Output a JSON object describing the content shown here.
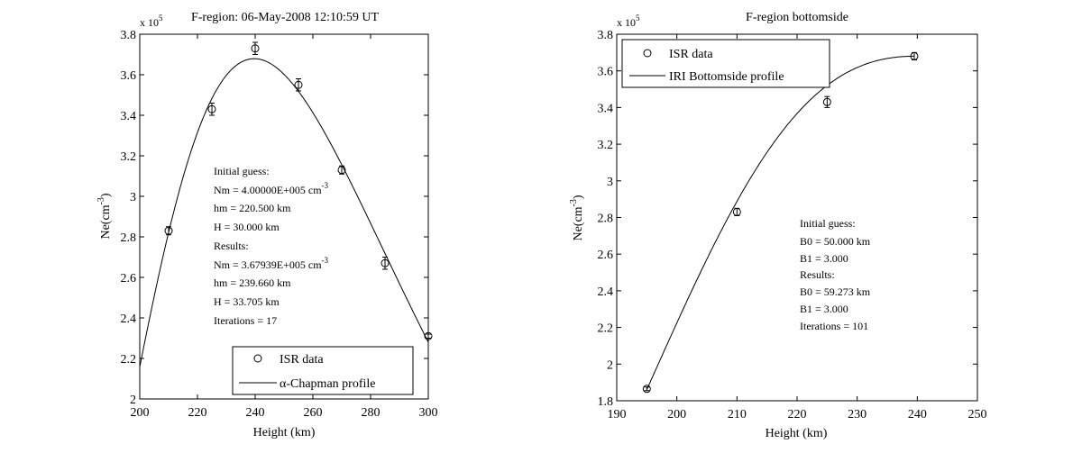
{
  "chart_data": [
    {
      "type": "scatter",
      "title": "F-region: 06-May-2008 12:10:59 UT",
      "xlabel": "Height (km)",
      "ylabel": "Ne(cm^-3)",
      "ylabel_main": "Ne(cm",
      "ylabel_exp": "-3",
      "ylabel_close": ")",
      "y_multiplier": "x 10",
      "y_multiplier_exp": "5",
      "xlim": [
        200,
        300
      ],
      "ylim": [
        2.0,
        3.8
      ],
      "x_ticks": [
        "200",
        "220",
        "240",
        "260",
        "280",
        "300"
      ],
      "y_ticks": [
        "2",
        "2.2",
        "2.4",
        "2.6",
        "2.8",
        "3",
        "3.2",
        "3.4",
        "3.6",
        "3.8"
      ],
      "grid": false,
      "legend_position": "bottom-center",
      "series": [
        {
          "name": "ISR data",
          "kind": "points-with-errorbars",
          "marker": "circle",
          "x": [
            210,
            225,
            240,
            255,
            270,
            285,
            300
          ],
          "y": [
            2.83,
            3.43,
            3.73,
            3.55,
            3.13,
            2.67,
            2.31
          ],
          "err": [
            0.02,
            0.03,
            0.03,
            0.03,
            0.02,
            0.03,
            0.01
          ]
        },
        {
          "name": "α-Chapman profile",
          "kind": "line",
          "model": "alpha-chapman",
          "params": {
            "Nm": 3.67939,
            "hm": 239.66,
            "H": 33.705
          }
        }
      ],
      "annotation": [
        {
          "text": "Initial guess:"
        },
        {
          "text": "Nm = 4.00000E+005 cm",
          "sup": "-3"
        },
        {
          "text": "hm = 220.500 km"
        },
        {
          "text": "H = 30.000 km"
        },
        {
          "text": "Results:"
        },
        {
          "text": "Nm = 3.67939E+005 cm",
          "sup": "-3"
        },
        {
          "text": "hm = 239.660 km"
        },
        {
          "text": "H = 33.705 km"
        },
        {
          "text": "Iterations = 17"
        }
      ]
    },
    {
      "type": "scatter",
      "title": "F-region bottomside",
      "xlabel": "Height (km)",
      "ylabel": "Ne(cm^-3)",
      "ylabel_main": "Ne(cm",
      "ylabel_exp": "-3",
      "ylabel_close": ")",
      "y_multiplier": "x 10",
      "y_multiplier_exp": "5",
      "xlim": [
        190,
        250
      ],
      "ylim": [
        1.8,
        3.8
      ],
      "x_ticks": [
        "190",
        "200",
        "210",
        "220",
        "230",
        "240",
        "250"
      ],
      "y_ticks": [
        "1.8",
        "2",
        "2.2",
        "2.4",
        "2.6",
        "2.8",
        "3",
        "3.2",
        "3.4",
        "3.6",
        "3.8"
      ],
      "grid": false,
      "legend_position": "top-left",
      "series": [
        {
          "name": "ISR data",
          "kind": "points-with-errorbars",
          "marker": "circle",
          "x": [
            195,
            210,
            225,
            239.5
          ],
          "y": [
            1.865,
            2.83,
            3.43,
            3.68
          ],
          "err": [
            0.01,
            0.02,
            0.03,
            0.02
          ]
        },
        {
          "name": "IRI Bottomside profile",
          "kind": "line",
          "model": "iri-bottomside",
          "params": {
            "NmF2": 3.68,
            "hmF2": 239.5,
            "B0": 59.273,
            "B1": 3.0
          },
          "x_range": [
            195,
            239.5
          ]
        }
      ],
      "annotation": [
        {
          "text": "Initial guess:"
        },
        {
          "text": "B0 = 50.000 km"
        },
        {
          "text": "B1 = 3.000"
        },
        {
          "text": "Results:"
        },
        {
          "text": "B0 = 59.273 km"
        },
        {
          "text": "B1 = 3.000"
        },
        {
          "text": "Iterations = 101"
        }
      ]
    }
  ]
}
